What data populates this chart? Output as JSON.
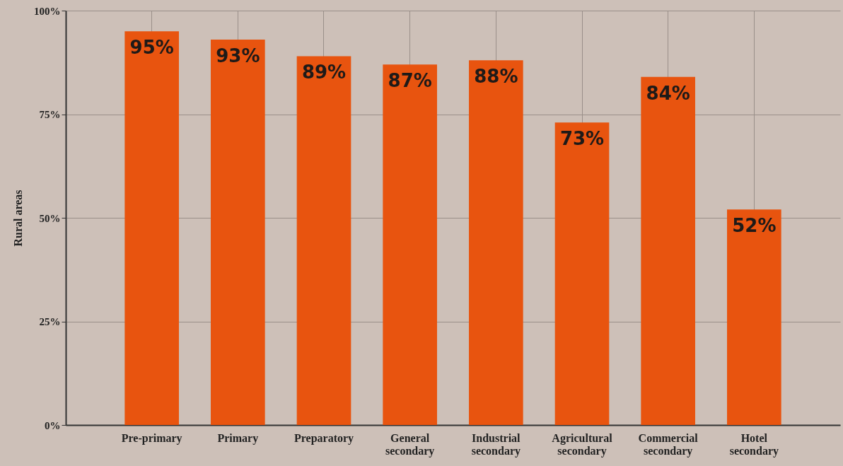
{
  "chart_data": {
    "type": "bar",
    "ylabel": "Rural areas",
    "categories": [
      "Pre-primary",
      "Primary",
      "Preparatory",
      "General secondary",
      "Industrial secondary",
      "Agricultural secondary",
      "Commercial secondary",
      "Hotel secondary"
    ],
    "values": [
      95,
      93,
      89,
      87,
      88,
      73,
      84,
      52
    ],
    "color": "#e8540f",
    "ylim": [
      0,
      100
    ],
    "yticks": [
      {
        "value": 0,
        "label": "0%"
      },
      {
        "value": 25,
        "label": "25%"
      },
      {
        "value": 50,
        "label": "50%"
      },
      {
        "value": 75,
        "label": "75%"
      },
      {
        "value": 100,
        "label": "100%"
      }
    ],
    "value_labels": [
      "95%",
      "93%",
      "89%",
      "87%",
      "88%",
      "73%",
      "84%",
      "52%"
    ],
    "grid": true
  }
}
